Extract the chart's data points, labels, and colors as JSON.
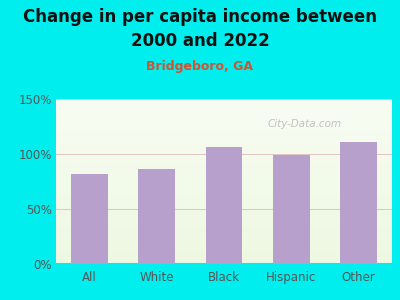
{
  "title_line1": "Change in per capita income between",
  "title_line2": "2000 and 2022",
  "subtitle": "Bridgeboro, GA",
  "categories": [
    "All",
    "White",
    "Black",
    "Hispanic",
    "Other"
  ],
  "values": [
    82,
    86,
    106,
    99,
    111
  ],
  "bar_color": "#b8a0cc",
  "title_fontsize": 12,
  "subtitle_fontsize": 9,
  "subtitle_color": "#cc5533",
  "title_color": "#111111",
  "background_outer": "#00eeee",
  "ylim": [
    0,
    150
  ],
  "yticks": [
    0,
    50,
    100,
    150
  ],
  "ytick_labels": [
    "0%",
    "50%",
    "100%",
    "150%"
  ],
  "tick_label_color": "#555555",
  "watermark": "City-Data.com",
  "grid_color": "#ddbbbb",
  "bar_width": 0.55
}
